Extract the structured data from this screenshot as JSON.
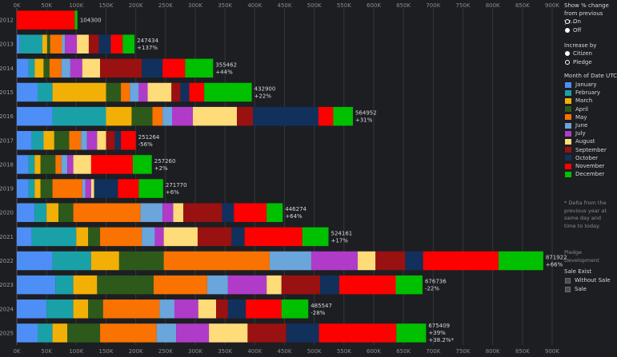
{
  "chart_data": {
    "type": "bar",
    "orientation": "horizontal",
    "stacked": true,
    "x_ticks": [
      "0K",
      "50K",
      "100K",
      "150K",
      "200K",
      "250K",
      "300K",
      "350K",
      "400K",
      "450K",
      "500K",
      "550K",
      "600K",
      "650K",
      "700K",
      "750K",
      "800K",
      "850K",
      "900K"
    ],
    "xlim": [
      0,
      900000
    ],
    "months": [
      "January",
      "February",
      "March",
      "April",
      "May",
      "June",
      "July",
      "August",
      "September",
      "October",
      "November",
      "December"
    ],
    "colors": [
      "#4e8ef7",
      "#1aa1a8",
      "#f2b006",
      "#2d5a1b",
      "#fa7200",
      "#6aa5dc",
      "#b03bc8",
      "#fddc79",
      "#991111",
      "#12305c",
      "#ff0000",
      "#00c000"
    ],
    "rows": [
      {
        "year": "2012",
        "total_label": "104300",
        "change_label": "",
        "values": [
          0,
          0,
          0,
          0,
          0,
          0,
          0,
          0,
          0,
          0,
          97500,
          4500
        ]
      },
      {
        "year": "2013",
        "total_label": "247434",
        "change_label": "+137%",
        "values": [
          5000,
          38000,
          8000,
          5000,
          20000,
          5000,
          20000,
          20000,
          17000,
          20000,
          20000,
          20000
        ]
      },
      {
        "year": "2014",
        "total_label": "355462",
        "change_label": "+44%",
        "values": [
          20000,
          10000,
          15000,
          10000,
          20000,
          15000,
          20000,
          30000,
          70000,
          35000,
          38000,
          47000
        ]
      },
      {
        "year": "2015",
        "total_label": "432900",
        "change_label": "+22%",
        "values": [
          35000,
          25000,
          90000,
          25000,
          15000,
          15000,
          15000,
          40000,
          15000,
          15000,
          25000,
          80000
        ]
      },
      {
        "year": "2016",
        "total_label": "564952",
        "change_label": "+31%",
        "values": [
          60000,
          90000,
          43000,
          35000,
          17000,
          16000,
          35000,
          74000,
          27000,
          110000,
          25000,
          33000
        ]
      },
      {
        "year": "2017",
        "total_label": "251264",
        "change_label": "-56%",
        "values": [
          25000,
          20000,
          18000,
          25000,
          20000,
          10000,
          17000,
          15000,
          15000,
          10000,
          25000,
          0
        ]
      },
      {
        "year": "2018",
        "total_label": "257260",
        "change_label": "+2%",
        "values": [
          20000,
          10000,
          10000,
          25000,
          10000,
          10000,
          10000,
          30000,
          0,
          0,
          70000,
          32000
        ]
      },
      {
        "year": "2019",
        "total_label": "271770",
        "change_label": "+6%",
        "values": [
          20000,
          10000,
          10000,
          20000,
          50000,
          5000,
          10000,
          5000,
          0,
          40000,
          35000,
          41000
        ]
      },
      {
        "year": "2020",
        "total_label": "446274",
        "change_label": "+64%",
        "values": [
          30000,
          20000,
          20000,
          25000,
          113000,
          37000,
          18000,
          17000,
          65000,
          20000,
          55000,
          27000
        ]
      },
      {
        "year": "2021",
        "total_label": "524161",
        "change_label": "+17%",
        "values": [
          25000,
          75000,
          20000,
          20000,
          70000,
          22000,
          15000,
          57000,
          57000,
          22000,
          97000,
          44000
        ]
      },
      {
        "year": "2022",
        "total_label": "871922",
        "change_label": "+66%",
        "values": [
          60000,
          65000,
          47000,
          75000,
          178000,
          70000,
          78000,
          30000,
          50000,
          30000,
          127000,
          75000
        ]
      },
      {
        "year": "2023",
        "total_label": "676736",
        "change_label": "-22%",
        "values": [
          65000,
          30000,
          40000,
          95000,
          90000,
          35000,
          65000,
          25000,
          65000,
          32000,
          95000,
          45000
        ]
      },
      {
        "year": "2024",
        "total_label": "485547",
        "change_label": "-28%",
        "values": [
          50000,
          45000,
          25000,
          25000,
          95000,
          25000,
          40000,
          30000,
          20000,
          30000,
          60000,
          45000
        ]
      },
      {
        "year": "2025",
        "total_label": "675409",
        "change_label": "+39%",
        "change_label2": "+38.2%*",
        "values": [
          35000,
          25000,
          25000,
          55000,
          95000,
          33000,
          55000,
          65000,
          65000,
          55000,
          130000,
          50000
        ]
      }
    ]
  },
  "panel": {
    "show_change_title": "Show % change from previous ye...",
    "show_change_options": [
      {
        "label": "On",
        "selected": false
      },
      {
        "label": "Off",
        "selected": true
      }
    ],
    "increase_by_title": "Increase by",
    "increase_by_options": [
      {
        "label": "Citizen",
        "selected": true
      },
      {
        "label": "Pledge",
        "selected": false
      }
    ],
    "legend_title": "Month of Date UTC",
    "note": "* Delta from the previous year at same day and time to today.",
    "pledge_label": "Pledge",
    "development_label": "Development",
    "sale_title": "Sale Exist",
    "sale_options": [
      "Without Sale",
      "Sale"
    ]
  }
}
